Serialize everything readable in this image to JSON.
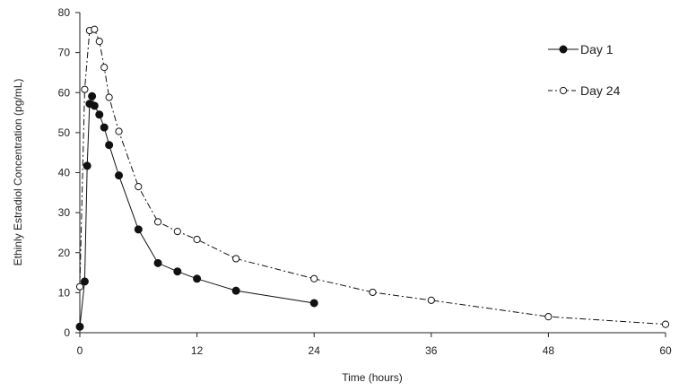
{
  "chart_data": {
    "type": "line",
    "xlabel": "Time (hours)",
    "ylabel": "Ethinly Estradiol Concentration (pg/mL)",
    "xlim": [
      0,
      60
    ],
    "ylim": [
      0,
      80
    ],
    "x_ticks": [
      0,
      12,
      24,
      36,
      48,
      60
    ],
    "y_ticks": [
      0,
      10,
      20,
      30,
      40,
      50,
      60,
      70,
      80
    ],
    "grid": false,
    "legend_position": "top-right",
    "series": [
      {
        "name": "Day 1",
        "line_style": "solid",
        "marker": "filled-circle",
        "x": [
          0,
          0.5,
          0.75,
          1,
          1.25,
          1.5,
          2,
          2.5,
          3,
          4,
          6,
          8,
          10,
          12,
          16,
          24
        ],
        "y": [
          1.5,
          12.8,
          41.7,
          57.2,
          59.1,
          56.7,
          54.5,
          51.3,
          46.9,
          39.3,
          25.8,
          17.4,
          15.3,
          13.5,
          10.5,
          7.4
        ]
      },
      {
        "name": "Day 24",
        "line_style": "dash-dot",
        "marker": "open-circle",
        "x": [
          0,
          0.5,
          1,
          1.5,
          2,
          2.5,
          3,
          4,
          6,
          8,
          10,
          12,
          16,
          24,
          30,
          36,
          48,
          60
        ],
        "y": [
          11.5,
          60.8,
          75.5,
          75.8,
          72.8,
          66.3,
          58.8,
          50.3,
          36.5,
          27.7,
          25.3,
          23.3,
          18.5,
          13.5,
          10.1,
          8.1,
          4.0,
          2.1
        ]
      }
    ]
  },
  "colors": {
    "axis": "#222222",
    "series": "#111111",
    "open_fill": "#ffffff"
  }
}
